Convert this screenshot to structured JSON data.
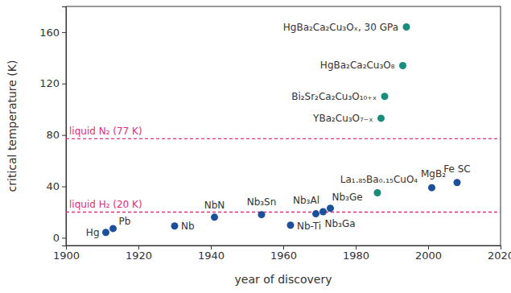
{
  "chart_data": {
    "type": "scatter",
    "xlabel": "year of discovery",
    "ylabel": "critical temperature (K)",
    "x": [
      1911,
      1913,
      1930,
      1941,
      1954,
      1962,
      1969,
      1971,
      1973,
      1986,
      1987,
      1988,
      1993,
      1994,
      2001,
      2008
    ],
    "values": [
      4.2,
      7.2,
      9.2,
      16,
      18,
      9.8,
      18.7,
      20.3,
      23,
      35,
      93,
      110,
      134,
      164,
      39,
      43
    ],
    "labels": [
      "Hg",
      "Pb",
      "Nb",
      "NbN",
      "Nb₃Sn",
      "Nb-Ti",
      "Nb₃Al",
      "Nb₃Ga",
      "Nb₃Ge",
      "La₁.₈₅Ba₀.₁₅CuO₄",
      "YBa₂Cu₃O₇₋ₓ",
      "Bi₂Sr₂Ca₂Cu₃O₁₀₊ₓ",
      "HgBa₂Ca₂Cu₃O₈",
      "HgBa₂Ca₂Cu₃Oₓ, 30 GPa",
      "MgB₂",
      "Fe SC"
    ],
    "colors": [
      "#1d4f9a",
      "#1d4f9a",
      "#1d4f9a",
      "#1d4f9a",
      "#1d4f9a",
      "#1d4f9a",
      "#1d4f9a",
      "#1d4f9a",
      "#1d4f9a",
      "#1a8c7c",
      "#1a8c7c",
      "#1a8c7c",
      "#1a8c7c",
      "#1a8c7c",
      "#1d4f9a",
      "#1d4f9a"
    ],
    "annotations": [
      {
        "y": 77,
        "label": "liquid N₂ (77 K)",
        "color": "#e0307a",
        "line_style": "dashed"
      },
      {
        "y": 20,
        "label": "liquid H₂ (20 K)",
        "color": "#e0307a",
        "line_style": "dashed"
      }
    ],
    "xlim": [
      1900,
      2020
    ],
    "xticks": [
      1900,
      1920,
      1940,
      1960,
      1980,
      2000,
      2020
    ],
    "ylim": [
      -6,
      180
    ],
    "yticks": [
      0,
      40,
      80,
      120,
      160
    ],
    "grid": false
  }
}
